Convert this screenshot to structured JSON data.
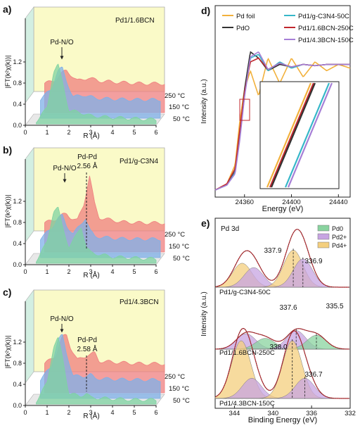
{
  "panels": {
    "a": {
      "label": "a)",
      "sample": "Pd1/1.6BCN",
      "peak_labels": [
        "Pd-N/O"
      ],
      "temps": [
        "250 °C",
        "150 °C",
        "50 °C"
      ],
      "xlabel": "R (Å)",
      "ylabel": "|FT(k²χ(k))|",
      "xticks": [
        "0",
        "1",
        "2",
        "3",
        "4",
        "5",
        "6"
      ],
      "yticks": [
        "0.0",
        "0.4",
        "0.8",
        "1.2"
      ]
    },
    "b": {
      "label": "b)",
      "sample": "Pd1/g-C3N4",
      "peak_labels": [
        "Pd-N/O",
        "Pd-Pd",
        "2.56 Å"
      ],
      "temps": [
        "250 °C",
        "150 °C",
        "50 °C"
      ],
      "xlabel": "R (Å)",
      "ylabel": "|FT(k²χ(k))|",
      "xticks": [
        "0",
        "1",
        "2",
        "3",
        "4",
        "5",
        "6"
      ],
      "yticks": [
        "0.0",
        "0.4",
        "0.8",
        "1.2"
      ]
    },
    "c": {
      "label": "c)",
      "sample": "Pd1/4.3BCN",
      "peak_labels": [
        "Pd-N/O",
        "Pd-Pd",
        "2.58 Å"
      ],
      "temps": [
        "250 °C",
        "150 °C",
        "50 °C"
      ],
      "xlabel": "R (Å)",
      "ylabel": "|FT(k²χ(k))|",
      "xticks": [
        "0",
        "1",
        "2",
        "3",
        "4",
        "5",
        "6"
      ],
      "yticks": [
        "0.0",
        "0.4",
        "0.8",
        "1.2"
      ]
    },
    "d": {
      "label": "d)",
      "legend": [
        "Pd foil",
        "PdO",
        "Pd1/g-C3N4-50C",
        "Pd1/1.6BCN-250C",
        "Pd1/4.3BCN-150C"
      ],
      "xlabel": "Energy (eV)",
      "ylabel": "Intensity (a.u.)",
      "xticks": [
        "24360",
        "24400",
        "24440"
      ]
    },
    "e": {
      "label": "e)",
      "title": "Pd 3d",
      "legend": [
        "Pd0",
        "Pd2+",
        "Pd4+"
      ],
      "samples": [
        "Pd1/g-C3N4-50C",
        "Pd1/1.6BCN-250C",
        "Pd1/4.3BCN-150C"
      ],
      "peak_values": [
        "337.9",
        "336.9",
        "337.6",
        "335.5",
        "338.0",
        "336.7"
      ],
      "xlabel": "Binding Energy (eV)",
      "ylabel": "Intensity (a.u.)",
      "xticks": [
        "344",
        "340",
        "336",
        "332"
      ]
    }
  },
  "colors": {
    "green": "#7fd3a2",
    "blue": "#7fb0e8",
    "red": "#ef7f7f",
    "yellow_bg": "#fafac8",
    "teal_bg": "#d3efe2",
    "pd_foil": "#f2b13c",
    "pdo": "#333333",
    "gcn": "#36b7c9",
    "bcn16": "#c0272d",
    "bcn43": "#a67fd6",
    "pd0": "#89d39f",
    "pd2": "#c7a4e2",
    "pd4": "#f4cf7e"
  },
  "chart_data": [
    {
      "type": "area",
      "panel": "a",
      "title": "Pd1/1.6BCN",
      "xlabel": "R (Å)",
      "ylabel": "|FT(k²χ(k))|",
      "xlim": [
        0,
        6
      ],
      "ylim": [
        0,
        1.5
      ],
      "series": [
        {
          "name": "50 °C",
          "x": [
            0.5,
            1.0,
            1.3,
            1.5,
            1.7,
            2.0,
            2.5,
            3.0,
            4.0,
            5.0,
            6.0
          ],
          "values": [
            0.05,
            0.3,
            1.0,
            1.12,
            0.8,
            0.25,
            0.22,
            0.15,
            0.12,
            0.1,
            0.08
          ]
        },
        {
          "name": "150 °C",
          "x": [
            0.5,
            1.0,
            1.3,
            1.5,
            1.7,
            2.0,
            2.5,
            3.0,
            4.0,
            5.0,
            6.0
          ],
          "values": [
            0.36,
            0.55,
            0.9,
            0.95,
            0.7,
            0.4,
            0.44,
            0.38,
            0.36,
            0.35,
            0.35
          ]
        },
        {
          "name": "250 °C",
          "x": [
            0.5,
            1.0,
            1.3,
            1.5,
            1.7,
            2.0,
            2.5,
            3.0,
            4.0,
            5.0,
            6.0
          ],
          "values": [
            0.55,
            0.62,
            0.75,
            0.8,
            0.72,
            0.6,
            0.66,
            0.6,
            0.57,
            0.55,
            0.55
          ]
        }
      ]
    },
    {
      "type": "area",
      "panel": "b",
      "title": "Pd1/g-C3N4",
      "xlabel": "R (Å)",
      "ylabel": "|FT(k²χ(k))|",
      "xlim": [
        0,
        6
      ],
      "ylim": [
        0,
        1.5
      ],
      "series": [
        {
          "name": "50 °C",
          "x": [
            0.5,
            1.0,
            1.3,
            1.5,
            1.7,
            2.0,
            2.3,
            2.56,
            2.8,
            3.0,
            4.0,
            5.0,
            6.0
          ],
          "values": [
            0.05,
            0.4,
            1.0,
            1.05,
            0.7,
            0.3,
            0.5,
            0.7,
            0.3,
            0.2,
            0.12,
            0.1,
            0.08
          ]
        },
        {
          "name": "150 °C",
          "x": [
            0.5,
            1.0,
            1.3,
            1.5,
            1.7,
            2.0,
            2.3,
            2.56,
            2.8,
            3.0,
            4.0,
            5.0,
            6.0
          ],
          "values": [
            0.36,
            0.55,
            0.75,
            0.8,
            0.6,
            0.45,
            0.6,
            0.75,
            0.5,
            0.4,
            0.36,
            0.35,
            0.35
          ]
        },
        {
          "name": "250 °C",
          "x": [
            0.5,
            1.0,
            1.3,
            1.5,
            1.7,
            2.0,
            2.3,
            2.56,
            2.8,
            3.0,
            4.0,
            5.0,
            6.0
          ],
          "values": [
            0.55,
            0.62,
            0.7,
            0.72,
            0.65,
            0.6,
            0.9,
            1.45,
            0.9,
            0.65,
            0.57,
            0.55,
            0.55
          ]
        }
      ]
    },
    {
      "type": "area",
      "panel": "c",
      "title": "Pd1/4.3BCN",
      "xlabel": "R (Å)",
      "ylabel": "|FT(k²χ(k))|",
      "xlim": [
        0,
        6
      ],
      "ylim": [
        0,
        1.5
      ],
      "series": [
        {
          "name": "50 °C",
          "x": [
            0.5,
            1.0,
            1.3,
            1.5,
            1.7,
            2.0,
            2.5,
            2.8,
            3.0,
            4.0,
            5.0,
            6.0
          ],
          "values": [
            0.05,
            0.4,
            1.1,
            1.25,
            0.9,
            0.2,
            0.15,
            0.2,
            0.12,
            0.1,
            0.08,
            0.08
          ]
        },
        {
          "name": "150 °C",
          "x": [
            0.5,
            1.0,
            1.3,
            1.5,
            1.7,
            2.0,
            2.5,
            2.8,
            3.0,
            4.0,
            5.0,
            6.0
          ],
          "values": [
            0.36,
            0.6,
            1.1,
            1.2,
            0.85,
            0.42,
            0.42,
            0.45,
            0.38,
            0.36,
            0.35,
            0.35
          ]
        },
        {
          "name": "250 °C",
          "x": [
            0.5,
            1.0,
            1.3,
            1.5,
            1.7,
            2.0,
            2.5,
            2.8,
            3.0,
            4.0,
            5.0,
            6.0
          ],
          "values": [
            0.55,
            0.7,
            1.05,
            1.1,
            0.85,
            0.62,
            0.72,
            0.75,
            0.6,
            0.57,
            0.55,
            0.55
          ]
        }
      ]
    },
    {
      "type": "line",
      "panel": "d",
      "xlabel": "Energy (eV)",
      "ylabel": "Intensity (a.u.)",
      "xlim": [
        24335,
        24450
      ],
      "series": [
        {
          "name": "Pd foil",
          "x": [
            24335,
            24345,
            24352,
            24356,
            24360,
            24365,
            24372,
            24380,
            24390,
            24400,
            24410,
            24420,
            24430,
            24440,
            24450
          ],
          "values": [
            0.0,
            0.05,
            0.2,
            0.55,
            0.8,
            0.95,
            0.75,
            1.05,
            0.85,
            1.05,
            0.9,
            1.02,
            0.95,
            1.0,
            0.97
          ]
        },
        {
          "name": "PdO",
          "x": [
            24335,
            24345,
            24352,
            24356,
            24360,
            24365,
            24372,
            24380,
            24390,
            24400,
            24410,
            24420,
            24430,
            24440,
            24450
          ],
          "values": [
            0.0,
            0.04,
            0.15,
            0.45,
            0.8,
            1.1,
            1.05,
            0.95,
            1.0,
            0.98,
            1.0,
            0.99,
            1.0,
            1.0,
            1.0
          ]
        },
        {
          "name": "Pd1/g-C3N4-50C",
          "x": [
            24335,
            24345,
            24352,
            24356,
            24360,
            24365,
            24372,
            24380,
            24390,
            24400,
            24410,
            24420,
            24430,
            24440,
            24450
          ],
          "values": [
            0.0,
            0.04,
            0.14,
            0.42,
            0.75,
            1.05,
            1.08,
            0.95,
            1.02,
            0.97,
            1.0,
            0.99,
            1.0,
            1.0,
            1.0
          ]
        },
        {
          "name": "Pd1/1.6BCN-250C",
          "x": [
            24335,
            24345,
            24352,
            24356,
            24360,
            24365,
            24372,
            24380,
            24390,
            24400,
            24410,
            24420,
            24430,
            24440,
            24450
          ],
          "values": [
            0.0,
            0.05,
            0.17,
            0.48,
            0.78,
            1.02,
            1.05,
            0.96,
            1.01,
            0.98,
            1.0,
            0.99,
            1.0,
            1.0,
            1.0
          ]
        },
        {
          "name": "Pd1/4.3BCN-150C",
          "x": [
            24335,
            24345,
            24352,
            24356,
            24360,
            24365,
            24372,
            24380,
            24390,
            24400,
            24410,
            24420,
            24430,
            24440,
            24450
          ],
          "values": [
            0.0,
            0.04,
            0.13,
            0.4,
            0.74,
            1.06,
            1.1,
            0.96,
            1.01,
            0.98,
            1.0,
            0.99,
            1.0,
            1.0,
            1.0
          ]
        }
      ]
    },
    {
      "type": "area",
      "panel": "e",
      "title": "Pd 3d",
      "xlabel": "Binding Energy (eV)",
      "ylabel": "Intensity (a.u.)",
      "xlim": [
        346,
        332
      ],
      "series": [
        {
          "name": "Pd1/g-C3N4-50C",
          "peaks": [
            {
              "state": "Pd4+",
              "center": 343.2,
              "height": 0.55
            },
            {
              "state": "Pd2+",
              "center": 342.0,
              "height": 0.45
            },
            {
              "state": "Pd4+",
              "center": 337.9,
              "height": 0.85
            },
            {
              "state": "Pd2+",
              "center": 336.9,
              "height": 0.65
            }
          ]
        },
        {
          "name": "Pd1/1.6BCN-250C",
          "peaks": [
            {
              "state": "Pd2+",
              "center": 342.8,
              "height": 0.5
            },
            {
              "state": "Pd0",
              "center": 340.8,
              "height": 0.35
            },
            {
              "state": "Pd2+",
              "center": 337.6,
              "height": 0.6
            },
            {
              "state": "Pd0",
              "center": 335.5,
              "height": 0.45
            }
          ]
        },
        {
          "name": "Pd1/4.3BCN-150C",
          "peaks": [
            {
              "state": "Pd4+",
              "center": 343.3,
              "height": 1.0
            },
            {
              "state": "Pd2+",
              "center": 342.2,
              "height": 0.35
            },
            {
              "state": "Pd4+",
              "center": 338.0,
              "height": 1.0
            },
            {
              "state": "Pd2+",
              "center": 336.7,
              "height": 0.35
            }
          ]
        }
      ]
    }
  ]
}
